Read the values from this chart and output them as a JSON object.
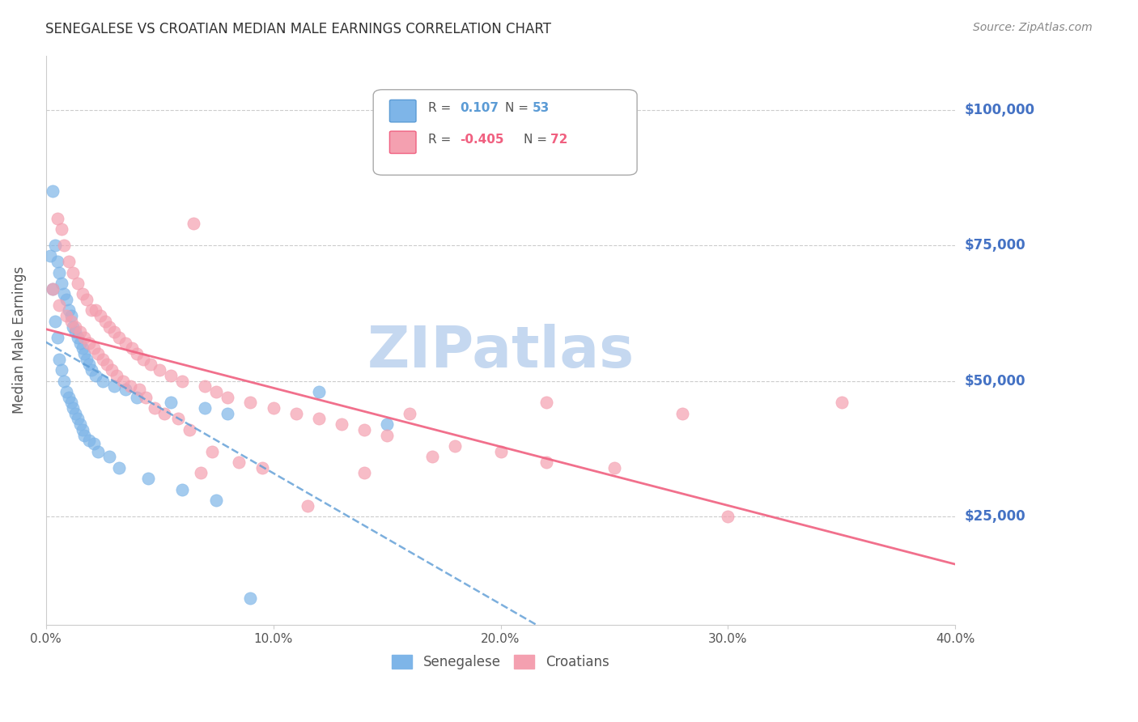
{
  "title": "SENEGALESE VS CROATIAN MEDIAN MALE EARNINGS CORRELATION CHART",
  "source_text": "Source: ZipAtlas.com",
  "xlabel_ticks": [
    "0.0%",
    "10.0%",
    "20.0%",
    "30.0%",
    "40.0%"
  ],
  "xlabel_tick_vals": [
    0.0,
    10.0,
    20.0,
    30.0,
    40.0
  ],
  "ylabel": "Median Male Earnings",
  "ytick_vals": [
    25000,
    50000,
    75000,
    100000
  ],
  "ytick_labels": [
    "$25,000",
    "$50,000",
    "$75,000",
    "$100,000"
  ],
  "xlim": [
    0.0,
    40.0
  ],
  "ylim": [
    5000,
    110000
  ],
  "senegalese_color": "#7EB5E8",
  "croatian_color": "#F4A0B0",
  "trend_blue": "#5B9BD5",
  "trend_pink": "#F06080",
  "watermark": "ZIPatlas",
  "watermark_color": "#C5D8F0",
  "legend_r_blue": "0.107",
  "legend_n_blue": "53",
  "legend_r_pink": "-0.405",
  "legend_n_pink": "72",
  "background_color": "#ffffff",
  "title_color": "#333333",
  "axis_label_color": "#555555",
  "ytick_color": "#4472C4",
  "senegalese_x": [
    0.3,
    0.4,
    0.5,
    0.6,
    0.7,
    0.8,
    0.9,
    1.0,
    1.1,
    1.2,
    1.3,
    1.4,
    1.5,
    1.6,
    1.7,
    1.8,
    1.9,
    2.0,
    2.2,
    2.5,
    3.0,
    3.5,
    4.0,
    5.5,
    7.0,
    8.0,
    0.2,
    0.3,
    0.4,
    0.5,
    0.6,
    0.7,
    0.8,
    0.9,
    1.0,
    1.1,
    1.2,
    1.3,
    1.4,
    1.5,
    1.6,
    1.7,
    1.9,
    2.1,
    2.3,
    2.8,
    3.2,
    4.5,
    6.0,
    7.5,
    9.0,
    12.0,
    15.0
  ],
  "senegalese_y": [
    85000,
    75000,
    72000,
    70000,
    68000,
    66000,
    65000,
    63000,
    62000,
    60000,
    59000,
    58000,
    57000,
    56000,
    55000,
    54000,
    53000,
    52000,
    51000,
    50000,
    49000,
    48500,
    47000,
    46000,
    45000,
    44000,
    73000,
    67000,
    61000,
    58000,
    54000,
    52000,
    50000,
    48000,
    47000,
    46000,
    45000,
    44000,
    43000,
    42000,
    41000,
    40000,
    39000,
    38500,
    37000,
    36000,
    34000,
    32000,
    30000,
    28000,
    10000,
    48000,
    42000
  ],
  "croatian_x": [
    0.5,
    0.7,
    0.8,
    1.0,
    1.2,
    1.4,
    1.6,
    1.8,
    2.0,
    2.2,
    2.4,
    2.6,
    2.8,
    3.0,
    3.2,
    3.5,
    3.8,
    4.0,
    4.3,
    4.6,
    5.0,
    5.5,
    6.0,
    6.5,
    7.0,
    7.5,
    8.0,
    9.0,
    10.0,
    11.0,
    12.0,
    13.0,
    14.0,
    15.0,
    16.0,
    18.0,
    20.0,
    22.0,
    25.0,
    28.0,
    35.0,
    0.3,
    0.6,
    0.9,
    1.1,
    1.3,
    1.5,
    1.7,
    1.9,
    2.1,
    2.3,
    2.5,
    2.7,
    2.9,
    3.1,
    3.4,
    3.7,
    4.1,
    4.4,
    4.8,
    5.2,
    5.8,
    6.3,
    6.8,
    7.3,
    8.5,
    9.5,
    11.5,
    14.0,
    17.0,
    22.0,
    30.0
  ],
  "croatian_y": [
    80000,
    78000,
    75000,
    72000,
    70000,
    68000,
    66000,
    65000,
    63000,
    63000,
    62000,
    61000,
    60000,
    59000,
    58000,
    57000,
    56000,
    55000,
    54000,
    53000,
    52000,
    51000,
    50000,
    79000,
    49000,
    48000,
    47000,
    46000,
    45000,
    44000,
    43000,
    42000,
    41000,
    40000,
    44000,
    38000,
    37000,
    35000,
    34000,
    44000,
    46000,
    67000,
    64000,
    62000,
    61000,
    60000,
    59000,
    58000,
    57000,
    56000,
    55000,
    54000,
    53000,
    52000,
    51000,
    50000,
    49000,
    48500,
    47000,
    45000,
    44000,
    43000,
    41000,
    33000,
    37000,
    35000,
    34000,
    27000,
    33000,
    36000,
    46000,
    25000
  ]
}
